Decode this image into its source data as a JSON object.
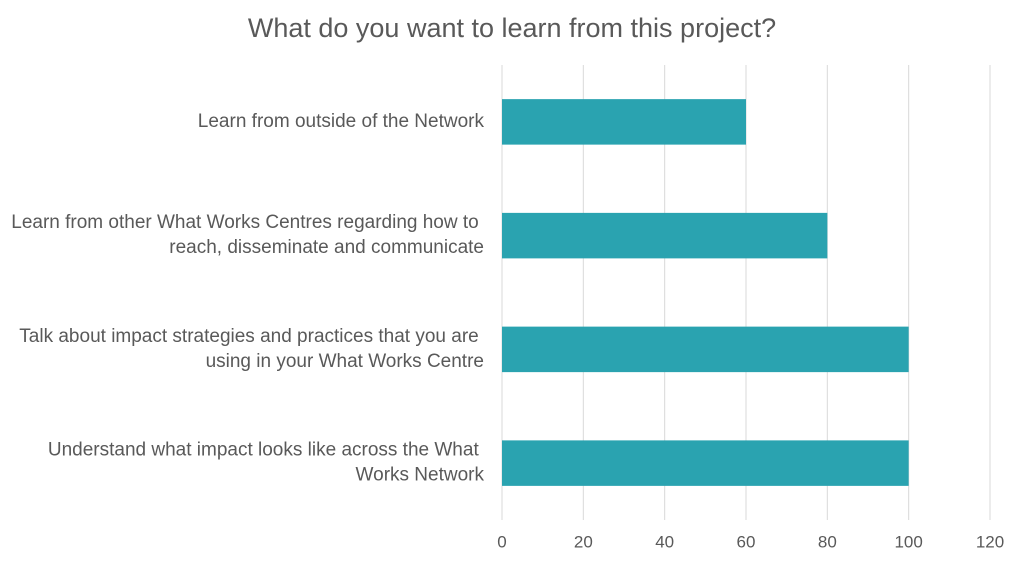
{
  "chart_data": {
    "type": "barh",
    "title": "What do you want to learn from this project?",
    "categories": [
      "Learn from outside of the Network",
      "Learn from other What Works Centres regarding how to reach, disseminate and communicate",
      "Talk about impact strategies and practices that you are using in your What Works Centre",
      "Understand what impact looks like across the What Works Network"
    ],
    "values": [
      60,
      80,
      100,
      100
    ],
    "color": "#2aa3b0",
    "xlim": [
      0,
      120
    ],
    "xticks": [
      0,
      20,
      40,
      60,
      80,
      100,
      120
    ],
    "grid": true
  }
}
